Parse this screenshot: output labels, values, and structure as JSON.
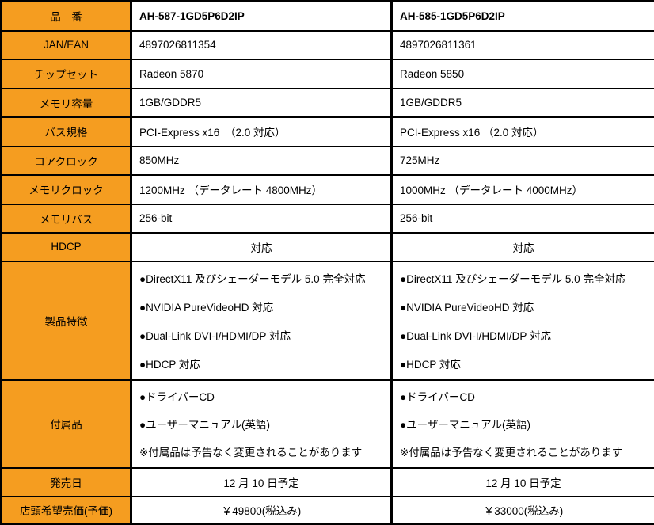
{
  "colors": {
    "label_bg": "#F59D20",
    "border": "#000000",
    "cell_bg": "#FFFFFF",
    "text": "#000000"
  },
  "table": {
    "rows": [
      {
        "label": "品　番",
        "c1": "AH-587-1GD5P6D2IP",
        "c2": "AH-585-1GD5P6D2IP"
      },
      {
        "label": "JAN/EAN",
        "c1": "4897026811354",
        "c2": "4897026811361"
      },
      {
        "label": "チップセット",
        "c1": "Radeon 5870",
        "c2": "Radeon 5850"
      },
      {
        "label": "メモリ容量",
        "c1": "1GB/GDDR5",
        "c2": "1GB/GDDR5"
      },
      {
        "label": "バス規格",
        "c1": "PCI-Express x16　（2.0 対応）",
        "c2": "PCI-Express x16 （2.0 対応）"
      },
      {
        "label": "コアクロック",
        "c1": "850MHz",
        "c2": "725MHz"
      },
      {
        "label": "メモリクロック",
        "c1": "1200MHz （データレート 4800MHz）",
        "c2": "1000MHz （データレート 4000MHz）"
      },
      {
        "label": "メモリバス",
        "c1": "256-bit",
        "c2": "256-bit"
      },
      {
        "label": "HDCP",
        "c1": "対応",
        "c2": "対応"
      }
    ],
    "features": {
      "label": "製品特徴",
      "c1": [
        "●DirectX11 及びシェーダーモデル 5.0 完全対応",
        "●NVIDIA PureVideoHD 対応",
        "●Dual-Link DVI-I/HDMI/DP 対応",
        "●HDCP 対応"
      ],
      "c2": [
        "●DirectX11 及びシェーダーモデル 5.0 完全対応",
        "●NVIDIA PureVideoHD 対応",
        "●Dual-Link DVI-I/HDMI/DP 対応",
        "●HDCP 対応"
      ]
    },
    "accessories": {
      "label": "付属品",
      "c1": [
        "●ドライバーCD",
        "●ユーザーマニュアル(英語)",
        "※付属品は予告なく変更されることがあります"
      ],
      "c2": [
        "●ドライバーCD",
        "●ユーザーマニュアル(英語)",
        "※付属品は予告なく変更されることがあります"
      ]
    },
    "release": {
      "label": "発売日",
      "c1": "12 月 10 日予定",
      "c2": "12 月 10 日予定"
    },
    "price": {
      "label": "店頭希望売価(予価)",
      "c1": "￥49800(税込み)",
      "c2": "￥33000(税込み)"
    }
  }
}
